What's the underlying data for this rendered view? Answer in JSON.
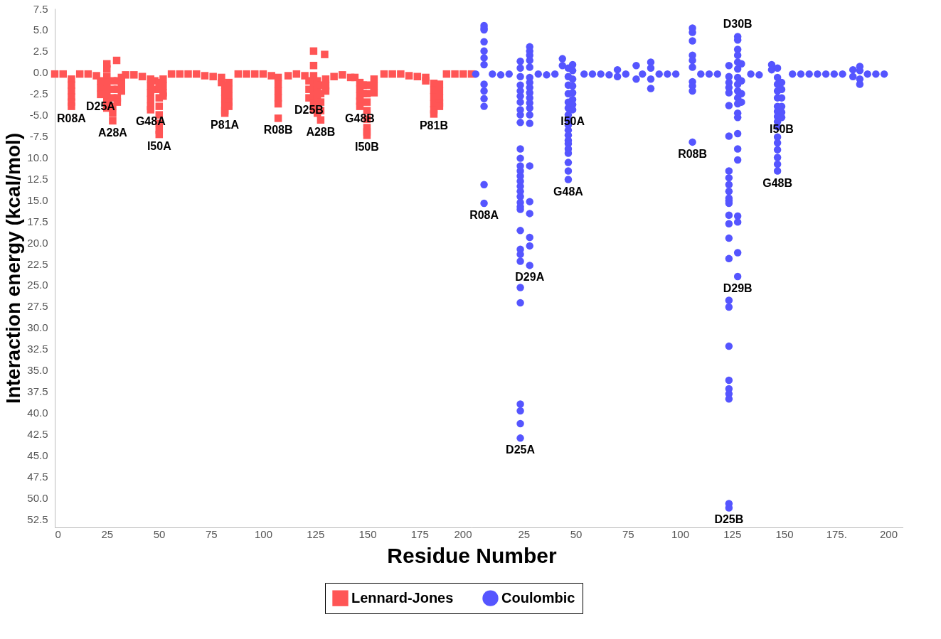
{
  "chart_data": [
    {
      "type": "scatter",
      "xlabel": "Residue Number",
      "ylabel": "Interaction energy (kcal/mol)",
      "xlim": [
        0,
        200
      ],
      "ylim": [
        -53.5,
        7.5
      ],
      "xticks": [
        0,
        25,
        50,
        75,
        100,
        125,
        150,
        175,
        200
      ],
      "yticks": [
        {
          "value": 7.5,
          "label": "7.5"
        },
        {
          "value": 5,
          "label": "5.0"
        },
        {
          "value": 2.5,
          "label": "2.5"
        },
        {
          "value": 0,
          "label": "0.0"
        },
        {
          "value": -2.5,
          "label": "-2.5"
        },
        {
          "value": -5,
          "label": "-5.0"
        },
        {
          "value": -7.5,
          "label": "-7.5"
        },
        {
          "value": -10,
          "label": "10.0"
        },
        {
          "value": -12.5,
          "label": "12.5"
        },
        {
          "value": -15,
          "label": "15.0"
        },
        {
          "value": -17.5,
          "label": "17.5"
        },
        {
          "value": -20,
          "label": "20.0"
        },
        {
          "value": -22.5,
          "label": "22.5"
        },
        {
          "value": -25,
          "label": "25.0"
        },
        {
          "value": -27.5,
          "label": "27.5"
        },
        {
          "value": -30,
          "label": "30.0"
        },
        {
          "value": -32.5,
          "label": "32.5"
        },
        {
          "value": -35,
          "label": "35.0"
        },
        {
          "value": -37.5,
          "label": "37.5"
        },
        {
          "value": -40,
          "label": "40.0"
        },
        {
          "value": -42.5,
          "label": "42.5"
        },
        {
          "value": -45,
          "label": "45.0"
        },
        {
          "value": -47.5,
          "label": "47.5"
        },
        {
          "value": -50,
          "label": "50.0"
        },
        {
          "value": -52.5,
          "label": "52.5"
        }
      ],
      "grid": false,
      "legend": "bottom",
      "series": [
        {
          "name": "Lennard-Jones",
          "color": "#ff5555",
          "marker": "square",
          "x": [
            0,
            4,
            12,
            16,
            20,
            34,
            38,
            42,
            56,
            60,
            64,
            68,
            72,
            76,
            88,
            92,
            96,
            100,
            104,
            112,
            116,
            120,
            134,
            138,
            142,
            158,
            162,
            166,
            170,
            174,
            188,
            192,
            196,
            200,
            8,
            8,
            8,
            8,
            8,
            8,
            22,
            22,
            22,
            25,
            25,
            25,
            25,
            25,
            25,
            25,
            25,
            27.8,
            27.8,
            27.8,
            27.8,
            27.8,
            27.8,
            29.7,
            30,
            30,
            30,
            30,
            32,
            32,
            32,
            46,
            46,
            46,
            46,
            46,
            46,
            48,
            48,
            50.1,
            50.1,
            50.1,
            50.1,
            50.1,
            50.1,
            50.1,
            50.1,
            52,
            52,
            52,
            52,
            80,
            80,
            81.6,
            81.6,
            81.6,
            81.6,
            81.6,
            81.6,
            83.5,
            83.5,
            83.5,
            83.5,
            83.5,
            107.2,
            107.2,
            107.2,
            107.2,
            107.2,
            107.2,
            122,
            122,
            122,
            124.2,
            124.2,
            124.2,
            124.2,
            124.2,
            124.2,
            124.2,
            124.2,
            126,
            126,
            126,
            126,
            127.6,
            127.6,
            127.6,
            127.6,
            127.6,
            129.5,
            130,
            130,
            130,
            144,
            146.4,
            146.4,
            146.4,
            146.4,
            146.4,
            148,
            148,
            149.8,
            149.8,
            149.8,
            149.8,
            149.8,
            149.8,
            149.8,
            149.8,
            153.2,
            153.2,
            153.2,
            178,
            178,
            181.9,
            181.9,
            181.9,
            181.9,
            181.9,
            181.9,
            184.6,
            184.6,
            184.6,
            184.6,
            184.6
          ],
          "values": [
            -0.2,
            -0.2,
            -0.2,
            -0.2,
            -0.4,
            -0.3,
            -0.3,
            -0.5,
            -0.2,
            -0.2,
            -0.2,
            -0.2,
            -0.4,
            -0.5,
            -0.2,
            -0.2,
            -0.2,
            -0.2,
            -0.4,
            -0.4,
            -0.2,
            -0.4,
            -0.5,
            -0.3,
            -0.6,
            -0.2,
            -0.2,
            -0.2,
            -0.4,
            -0.5,
            -0.2,
            -0.2,
            -0.2,
            -0.2,
            -0.8,
            -1.5,
            -2.2,
            -2.9,
            -3.5,
            -4.0,
            -1.0,
            -1.8,
            -2.6,
            1.0,
            0.4,
            -0.5,
            -1.2,
            -2.0,
            -2.8,
            -3.5,
            -4.2,
            -1.0,
            -2.0,
            -3.0,
            -4.0,
            -4.8,
            -5.7,
            1.4,
            -1.0,
            -2.0,
            -3.0,
            -3.5,
            -0.6,
            -1.4,
            -2.2,
            -0.8,
            -1.6,
            -2.4,
            -3.2,
            -4.0,
            -4.4,
            -1.0,
            -2.0,
            -1.2,
            -2.0,
            -3.0,
            -4.0,
            -5.0,
            -6.0,
            -6.8,
            -7.3,
            -0.8,
            -1.6,
            -2.4,
            -2.8,
            -0.6,
            -1.2,
            -1.5,
            -2.3,
            -3.1,
            -3.9,
            -4.5,
            -4.8,
            -1.2,
            -2.0,
            -2.8,
            -3.5,
            -4.0,
            -0.6,
            -1.4,
            -2.2,
            -3.0,
            -3.7,
            -5.4,
            -1.0,
            -2.0,
            -3.0,
            2.5,
            0.8,
            -0.4,
            -1.2,
            -2.0,
            -2.8,
            -3.6,
            -4.4,
            -1.0,
            -2.0,
            -3.0,
            -4.8,
            -1.5,
            -2.5,
            -3.5,
            -4.5,
            -5.6,
            2.1,
            -0.8,
            -1.6,
            -2.2,
            -0.6,
            -1.2,
            -2.0,
            -2.8,
            -3.4,
            -4.0,
            -1.5,
            -2.5,
            -1.5,
            -2.5,
            -3.5,
            -4.5,
            -5.5,
            -6.5,
            -7.0,
            -7.4,
            -0.8,
            -1.6,
            -2.4,
            -0.6,
            -1.0,
            -1.3,
            -2.1,
            -2.9,
            -3.7,
            -4.4,
            -4.9,
            -1.4,
            -2.2,
            -3.0,
            -3.6,
            -4.0
          ]
        }
      ],
      "annotations": [
        {
          "text": "R08A",
          "x": 8,
          "y": -4.0
        },
        {
          "text": "D25A",
          "x": 22,
          "y": -2.6
        },
        {
          "text": "A28A",
          "x": 27.8,
          "y": -5.7
        },
        {
          "text": "G48A",
          "x": 46,
          "y": -4.4
        },
        {
          "text": "I50A",
          "x": 50.1,
          "y": -7.3
        },
        {
          "text": "P81A",
          "x": 81.6,
          "y": -4.8
        },
        {
          "text": "R08B",
          "x": 107.2,
          "y": -5.4
        },
        {
          "text": "D25B",
          "x": 122,
          "y": -3.0
        },
        {
          "text": "A28B",
          "x": 127.6,
          "y": -5.6
        },
        {
          "text": "G48B",
          "x": 146.4,
          "y": -4.0
        },
        {
          "text": "I50B",
          "x": 149.8,
          "y": -7.4
        },
        {
          "text": "P81B",
          "x": 181.9,
          "y": -4.9
        }
      ]
    },
    {
      "type": "scatter",
      "xlim": [
        0,
        207
      ],
      "ylim": [
        -53.5,
        7.5
      ],
      "tick_labels": "x",
      "xticks": [
        25,
        50,
        75,
        100,
        125,
        150,
        {
          "value": 175,
          "label": "175."
        },
        200
      ],
      "grid": false,
      "legend": "bottom",
      "series": [
        {
          "name": "Coulombic",
          "color": "#5555ff",
          "marker": "circle",
          "x": [
            2,
            10,
            14,
            18,
            32,
            36,
            40,
            54,
            58,
            62,
            66,
            74,
            82,
            90,
            94,
            98,
            110,
            114,
            118,
            134,
            138,
            154,
            158,
            162,
            166,
            170,
            174,
            178,
            190,
            194,
            198,
            6,
            6,
            6,
            6,
            6,
            6,
            6,
            6,
            6,
            6,
            6,
            6,
            6,
            23.4,
            23.4,
            23.4,
            23.4,
            23.4,
            23.4,
            23.4,
            23.4,
            23.4,
            23.4,
            23.4,
            23.4,
            23.4,
            23.4,
            23.4,
            23.4,
            23.4,
            23.4,
            23.4,
            23.4,
            23.4,
            23.4,
            23.4,
            23.4,
            23.4,
            23.4,
            23.4,
            23.4,
            23.4,
            23.4,
            23.4,
            23.4,
            27.9,
            27.9,
            27.9,
            27.9,
            27.9,
            27.9,
            27.9,
            27.9,
            27.9,
            27.9,
            27.9,
            27.9,
            27.9,
            27.9,
            27.9,
            27.9,
            27.9,
            27.9,
            27.9,
            27.9,
            43.6,
            43.6,
            46.4,
            46.4,
            46.4,
            46.4,
            46.4,
            46.4,
            46.4,
            46.4,
            46.4,
            46.4,
            46.4,
            46.4,
            46.4,
            46.4,
            46.4,
            46.4,
            46.4,
            46.4,
            48.5,
            48.5,
            48.5,
            48.5,
            48.5,
            48.5,
            48.5,
            48.5,
            70,
            70,
            79,
            79,
            86,
            86,
            86,
            86,
            106,
            106,
            106,
            106,
            106,
            106,
            106,
            106,
            106,
            106,
            123.5,
            123.5,
            123.5,
            123.5,
            123.5,
            123.5,
            123.5,
            123.5,
            123.5,
            123.5,
            123.5,
            123.5,
            123.5,
            123.5,
            123.5,
            123.5,
            123.5,
            123.5,
            123.5,
            123.5,
            123.5,
            123.5,
            123.5,
            123.5,
            123.5,
            123.5,
            123.5,
            127.7,
            127.7,
            127.7,
            127.7,
            127.7,
            127.7,
            127.7,
            127.7,
            127.7,
            127.7,
            127.7,
            127.7,
            127.7,
            127.7,
            127.7,
            127.7,
            127.7,
            127.7,
            127.7,
            127.7,
            129.5,
            129.5,
            129.5,
            129.5,
            144,
            144,
            146.8,
            146.8,
            146.8,
            146.8,
            146.8,
            146.8,
            146.8,
            146.8,
            146.8,
            146.8,
            146.8,
            146.8,
            146.8,
            146.8,
            146.8,
            146.8,
            148.8,
            148.8,
            148.8,
            148.8,
            148.8,
            148.8,
            183,
            183,
            186.3,
            186.3,
            186.3,
            186.3
          ],
          "values": [
            -0.2,
            -0.2,
            -0.3,
            -0.2,
            -0.2,
            -0.3,
            -0.2,
            -0.2,
            -0.2,
            -0.2,
            -0.3,
            -0.2,
            -0.2,
            -0.2,
            -0.2,
            -0.2,
            -0.2,
            -0.2,
            -0.2,
            -0.2,
            -0.3,
            -0.2,
            -0.2,
            -0.2,
            -0.2,
            -0.2,
            -0.2,
            -0.2,
            -0.2,
            -0.2,
            -0.2,
            5.5,
            5.2,
            5.0,
            3.6,
            2.5,
            1.7,
            0.9,
            -1.4,
            -2.2,
            -3.1,
            -4.0,
            -13.2,
            -15.4,
            1.3,
            0.5,
            -0.5,
            -1.5,
            -2.2,
            -2.8,
            -3.5,
            -4.4,
            -5.0,
            -5.9,
            -9.0,
            -10.1,
            -11.0,
            -11.6,
            -12.2,
            -12.8,
            -13.4,
            -14.0,
            -14.6,
            -15.3,
            -15.8,
            -16.1,
            -18.6,
            -20.8,
            -21.4,
            -22.2,
            -25.3,
            -27.1,
            -39.0,
            -39.8,
            -41.3,
            -43.0,
            3.0,
            2.5,
            2.0,
            1.4,
            0.6,
            -0.6,
            -1.2,
            -1.8,
            -2.4,
            -3.0,
            -3.6,
            -4.2,
            -5.0,
            -6.0,
            -11.0,
            -15.2,
            -16.6,
            -19.4,
            -20.4,
            -22.7,
            1.6,
            0.8,
            0.5,
            -0.5,
            -1.5,
            -2.5,
            -3.5,
            -4.2,
            -5.0,
            -5.6,
            -6.2,
            -6.8,
            -7.4,
            -8.0,
            -8.4,
            -9.0,
            -9.5,
            -10.6,
            -11.6,
            -12.6,
            0.9,
            0.2,
            -0.8,
            -1.6,
            -2.4,
            -3.2,
            -3.8,
            -4.4,
            0.3,
            -0.5,
            0.8,
            -0.8,
            1.2,
            0.5,
            -0.8,
            -1.9,
            5.2,
            4.7,
            3.7,
            2.0,
            1.4,
            0.6,
            -1.1,
            -1.6,
            -2.2,
            -8.2,
            0.8,
            -0.5,
            -1.2,
            -1.8,
            -2.4,
            -3.9,
            -7.5,
            -11.6,
            -12.4,
            -13.2,
            -14.0,
            -14.8,
            -15.1,
            -15.4,
            -16.8,
            -17.8,
            -19.5,
            -21.9,
            -26.8,
            -27.6,
            -32.2,
            -36.2,
            -37.2,
            -37.8,
            -38.4,
            -50.7,
            -51.2,
            4.2,
            3.8,
            2.7,
            2.0,
            1.2,
            0.4,
            -0.6,
            -1.4,
            -2.2,
            -3.0,
            -3.7,
            -4.8,
            -5.3,
            -7.2,
            -9.0,
            -10.3,
            -16.9,
            -17.6,
            -21.2,
            -24.0,
            1.0,
            -1.0,
            -2.5,
            -3.5,
            0.9,
            0.3,
            0.5,
            -0.6,
            -1.4,
            -2.2,
            -3.0,
            -4.0,
            -4.6,
            -5.2,
            -5.8,
            -6.4,
            -7.6,
            -8.3,
            -9.1,
            -10.0,
            -10.8,
            -11.6,
            -1.2,
            -2.0,
            -3.0,
            -4.0,
            -4.7,
            -5.3,
            0.3,
            -0.5,
            0.7,
            0.2,
            -0.8,
            -1.4
          ]
        }
      ],
      "annotations": [
        {
          "text": "R08A",
          "x": 6,
          "y": -15.4
        },
        {
          "text": "D25A",
          "x": 23.4,
          "y": -43.0
        },
        {
          "text": "D29A",
          "x": 27.9,
          "y": -22.7
        },
        {
          "text": "G48A",
          "x": 46.4,
          "y": -12.6
        },
        {
          "text": "I50A",
          "x": 48.5,
          "y": -4.4
        },
        {
          "text": "R08B",
          "x": 106,
          "y": -8.2
        },
        {
          "text": "D30B",
          "x": 127.7,
          "y": 4.2
        },
        {
          "text": "D29B",
          "x": 127.7,
          "y": -24.0
        },
        {
          "text": "D25B",
          "x": 123.5,
          "y": -51.2
        },
        {
          "text": "I50B",
          "x": 148.8,
          "y": -5.3
        },
        {
          "text": "G48B",
          "x": 146.8,
          "y": -11.6
        }
      ]
    }
  ]
}
